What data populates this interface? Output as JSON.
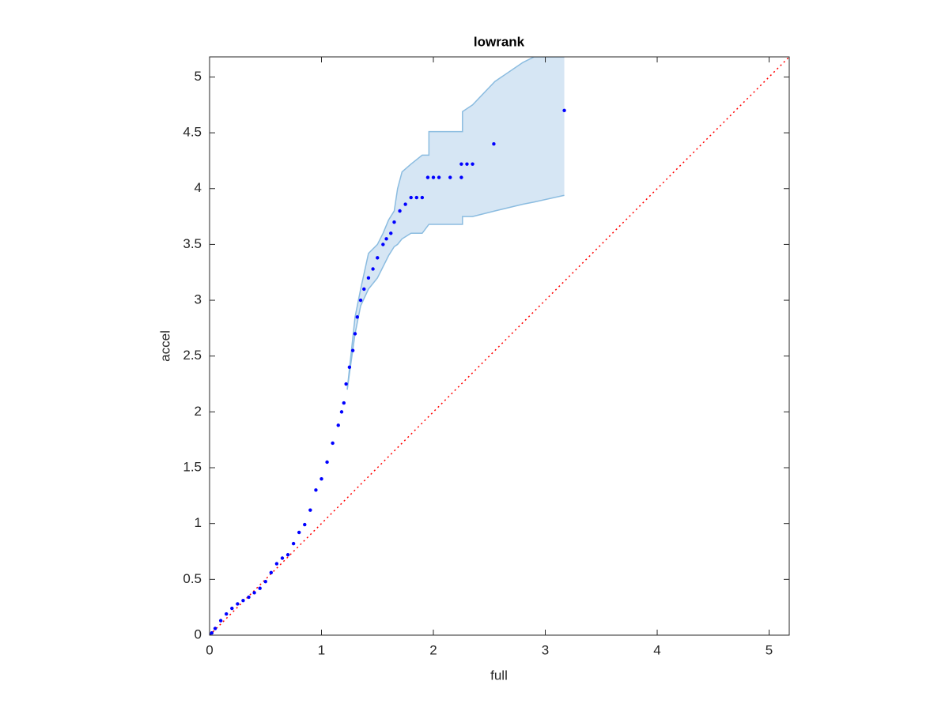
{
  "chart_data": {
    "type": "scatter",
    "title": "lowrank",
    "xlabel": "full",
    "ylabel": "accel",
    "xlim": [
      0,
      5.18
    ],
    "ylim": [
      0,
      5.18
    ],
    "xticks": [
      0,
      1,
      2,
      3,
      4,
      5
    ],
    "yticks": [
      0,
      0.5,
      1,
      1.5,
      2,
      2.5,
      3,
      3.5,
      4,
      4.5,
      5
    ],
    "band": {
      "color": "#d6e6f4",
      "edge_color": "#8bbce0",
      "x": [
        1.23,
        1.3,
        1.35,
        1.42,
        1.5,
        1.55,
        1.6,
        1.65,
        1.68,
        1.72,
        1.8,
        1.9,
        1.96,
        1.96,
        2.26,
        2.26,
        2.35,
        2.55,
        2.8,
        2.9,
        3.17
      ],
      "upper": [
        2.2,
        2.85,
        3.1,
        3.42,
        3.5,
        3.6,
        3.72,
        3.8,
        4.0,
        4.15,
        4.22,
        4.3,
        4.3,
        4.51,
        4.51,
        4.69,
        4.75,
        4.96,
        5.13,
        5.18,
        5.18
      ],
      "lower": [
        2.2,
        2.7,
        2.95,
        3.1,
        3.2,
        3.3,
        3.4,
        3.48,
        3.5,
        3.55,
        3.6,
        3.6,
        3.68,
        3.68,
        3.68,
        3.75,
        3.75,
        3.8,
        3.86,
        3.88,
        3.94
      ]
    },
    "reference": {
      "color": "#ff0000",
      "x": [
        0,
        5.18
      ],
      "y": [
        0,
        5.18
      ]
    },
    "series": [
      {
        "color": "#0000ff",
        "x": [
          0,
          0.02,
          0.05,
          0.1,
          0.15,
          0.2,
          0.25,
          0.3,
          0.35,
          0.4,
          0.45,
          0.5,
          0.55,
          0.6,
          0.65,
          0.7,
          0.75,
          0.8,
          0.85,
          0.9,
          0.95,
          1.0,
          1.05,
          1.1,
          1.15,
          1.18,
          1.2,
          1.22,
          1.25,
          1.28,
          1.3,
          1.32,
          1.35,
          1.38,
          1.42,
          1.46,
          1.5,
          1.55,
          1.58,
          1.62,
          1.65,
          1.7,
          1.75,
          1.8,
          1.85,
          1.9,
          1.95,
          2.0,
          2.05,
          2.15,
          2.25,
          2.25,
          2.3,
          2.35,
          2.54,
          3.17
        ],
        "y": [
          0,
          0.02,
          0.06,
          0.13,
          0.19,
          0.24,
          0.28,
          0.31,
          0.34,
          0.38,
          0.42,
          0.48,
          0.56,
          0.64,
          0.69,
          0.72,
          0.82,
          0.92,
          0.99,
          1.12,
          1.3,
          1.4,
          1.55,
          1.72,
          1.88,
          2.0,
          2.08,
          2.25,
          2.4,
          2.55,
          2.7,
          2.85,
          3.0,
          3.1,
          3.2,
          3.28,
          3.38,
          3.5,
          3.55,
          3.6,
          3.7,
          3.8,
          3.86,
          3.92,
          3.92,
          3.92,
          4.1,
          4.1,
          4.1,
          4.1,
          4.1,
          4.22,
          4.22,
          4.22,
          4.4,
          4.7
        ]
      }
    ]
  }
}
